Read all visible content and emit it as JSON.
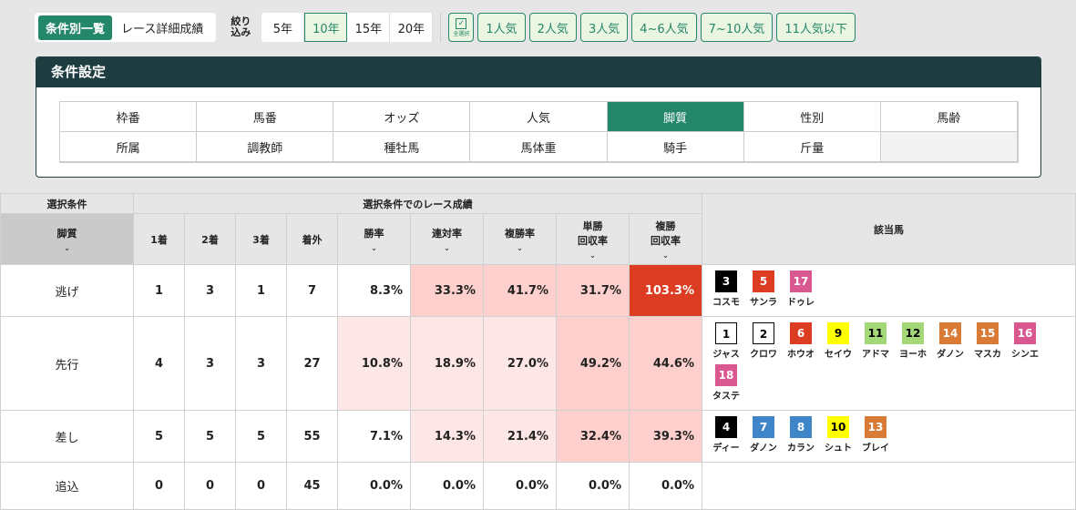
{
  "view_tabs": [
    "条件別一覧",
    "レース詳細成績"
  ],
  "filter_label": "絞り込み",
  "years": [
    "5年",
    "10年",
    "15年",
    "20年"
  ],
  "selected_year": "10年",
  "select_all": "全選択",
  "popularity": [
    "1人気",
    "2人気",
    "3人気",
    "4~6人気",
    "7~10人気",
    "11人気以下"
  ],
  "panel_title": "条件設定",
  "conditions": [
    "枠番",
    "馬番",
    "オッズ",
    "人気",
    "脚質",
    "性別",
    "馬齢",
    "所属",
    "調教師",
    "種牡馬",
    "馬体重",
    "騎手",
    "斤量",
    ""
  ],
  "active_condition": "脚質",
  "table": {
    "group_left": "選択条件",
    "group_mid": "選択条件でのレース成績",
    "horses_header": "該当馬",
    "cond_header": "脚質",
    "headers": [
      "1着",
      "2着",
      "3着",
      "着外",
      "勝率",
      "連対率",
      "複勝率",
      "単勝\n回収率",
      "複勝\n回収率"
    ],
    "rows": [
      {
        "cond": "逃げ",
        "vals": [
          "1",
          "3",
          "1",
          "7",
          "8.3%",
          "33.3%",
          "41.7%",
          "31.7%",
          "103.3%"
        ],
        "heat": [
          0,
          0,
          0,
          0,
          0,
          2,
          2,
          2,
          3
        ],
        "horses": [
          {
            "n": "3",
            "name": "コスモ",
            "bg": "#000000",
            "fg": "#ffffff"
          },
          {
            "n": "5",
            "name": "サンラ",
            "bg": "#dc3c22",
            "fg": "#ffffff"
          },
          {
            "n": "17",
            "name": "ドゥレ",
            "bg": "#d9588f",
            "fg": "#ffffff"
          }
        ]
      },
      {
        "cond": "先行",
        "vals": [
          "4",
          "3",
          "3",
          "27",
          "10.8%",
          "18.9%",
          "27.0%",
          "49.2%",
          "44.6%"
        ],
        "heat": [
          0,
          0,
          0,
          0,
          1,
          1,
          1,
          2,
          2
        ],
        "horses": [
          {
            "n": "1",
            "name": "ジャス",
            "bg": "#ffffff",
            "fg": "#000000"
          },
          {
            "n": "2",
            "name": "クロワ",
            "bg": "#ffffff",
            "fg": "#000000"
          },
          {
            "n": "6",
            "name": "ホウオ",
            "bg": "#dc3c22",
            "fg": "#ffffff"
          },
          {
            "n": "9",
            "name": "セイウ",
            "bg": "#ffff00",
            "fg": "#000000"
          },
          {
            "n": "11",
            "name": "アドマ",
            "bg": "#a3d777",
            "fg": "#000000"
          },
          {
            "n": "12",
            "name": "ヨーホ",
            "bg": "#a3d777",
            "fg": "#000000"
          },
          {
            "n": "14",
            "name": "ダノン",
            "bg": "#d97a36",
            "fg": "#ffffff"
          },
          {
            "n": "15",
            "name": "マスカ",
            "bg": "#d97a36",
            "fg": "#ffffff"
          },
          {
            "n": "16",
            "name": "シンエ",
            "bg": "#d9588f",
            "fg": "#ffffff"
          },
          {
            "n": "18",
            "name": "タステ",
            "bg": "#d9588f",
            "fg": "#ffffff"
          }
        ]
      },
      {
        "cond": "差し",
        "vals": [
          "5",
          "5",
          "5",
          "55",
          "7.1%",
          "14.3%",
          "21.4%",
          "32.4%",
          "39.3%"
        ],
        "heat": [
          0,
          0,
          0,
          0,
          0,
          1,
          1,
          2,
          2
        ],
        "horses": [
          {
            "n": "4",
            "name": "ディー",
            "bg": "#000000",
            "fg": "#ffffff"
          },
          {
            "n": "7",
            "name": "ダノン",
            "bg": "#3f86c8",
            "fg": "#ffffff"
          },
          {
            "n": "8",
            "name": "カラン",
            "bg": "#3f86c8",
            "fg": "#ffffff"
          },
          {
            "n": "10",
            "name": "シュト",
            "bg": "#ffff00",
            "fg": "#000000"
          },
          {
            "n": "13",
            "name": "ブレイ",
            "bg": "#d97a36",
            "fg": "#ffffff"
          }
        ]
      },
      {
        "cond": "追込",
        "vals": [
          "0",
          "0",
          "0",
          "45",
          "0.0%",
          "0.0%",
          "0.0%",
          "0.0%",
          "0.0%"
        ],
        "heat": [
          0,
          0,
          0,
          0,
          0,
          0,
          0,
          0,
          0
        ],
        "horses": []
      }
    ]
  }
}
